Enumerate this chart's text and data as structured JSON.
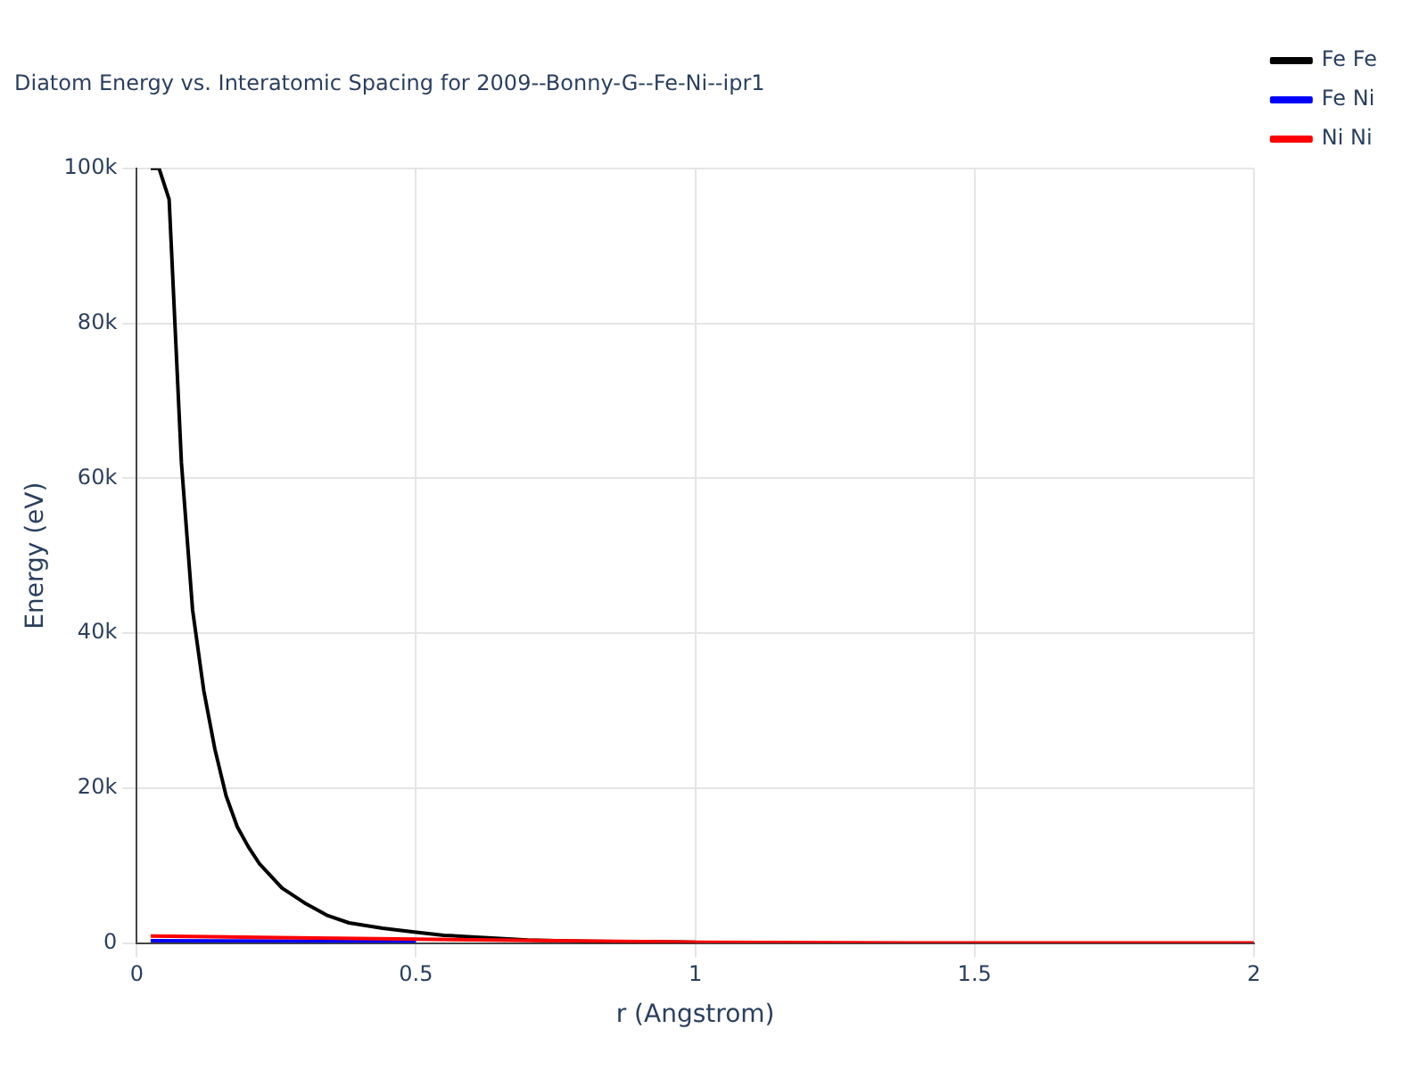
{
  "chart_data": {
    "type": "line",
    "title": "Diatom Energy vs. Interatomic Spacing for 2009--Bonny-G--Fe-Ni--ipr1",
    "xlabel": "r (Angstrom)",
    "ylabel": "Energy (eV)",
    "xlim": [
      0,
      2
    ],
    "xticks": [
      0,
      0.5,
      1,
      1.5,
      2
    ],
    "ylim": [
      0,
      100000
    ],
    "yticks": [
      0,
      {
        "value": 20000,
        "label": "20k"
      },
      {
        "value": 40000,
        "label": "40k"
      },
      {
        "value": 60000,
        "label": "60k"
      },
      {
        "value": 80000,
        "label": "80k"
      },
      {
        "value": 100000,
        "label": "100k"
      }
    ],
    "grid": true,
    "legend": "top right",
    "marker": "none",
    "line_style": "solid",
    "series": [
      {
        "name": "Fe Fe",
        "color": "#000000",
        "x": [
          0.025,
          0.04,
          0.058,
          0.08,
          0.1,
          0.12,
          0.14,
          0.16,
          0.18,
          0.2,
          0.22,
          0.26,
          0.3,
          0.34,
          0.38,
          0.44,
          0.5,
          0.55,
          0.6,
          0.7,
          0.8,
          1.0
        ],
        "values": [
          100000,
          100000,
          96000,
          62000,
          43000,
          32600,
          25000,
          19000,
          15000,
          12400,
          10200,
          7100,
          5200,
          3600,
          2600,
          1900,
          1400,
          1000,
          800,
          400,
          200,
          100
        ]
      },
      {
        "name": "Fe Ni",
        "color": "#0000ff",
        "x": [
          0.025,
          0.5
        ],
        "values": [
          300,
          200
        ]
      },
      {
        "name": "Ni Ni",
        "color": "#ff0000",
        "x": [
          0.025,
          0.25,
          0.5,
          0.75,
          1.0,
          1.5,
          2.0
        ],
        "values": [
          900,
          700,
          500,
          300,
          100,
          0,
          0
        ]
      }
    ]
  }
}
